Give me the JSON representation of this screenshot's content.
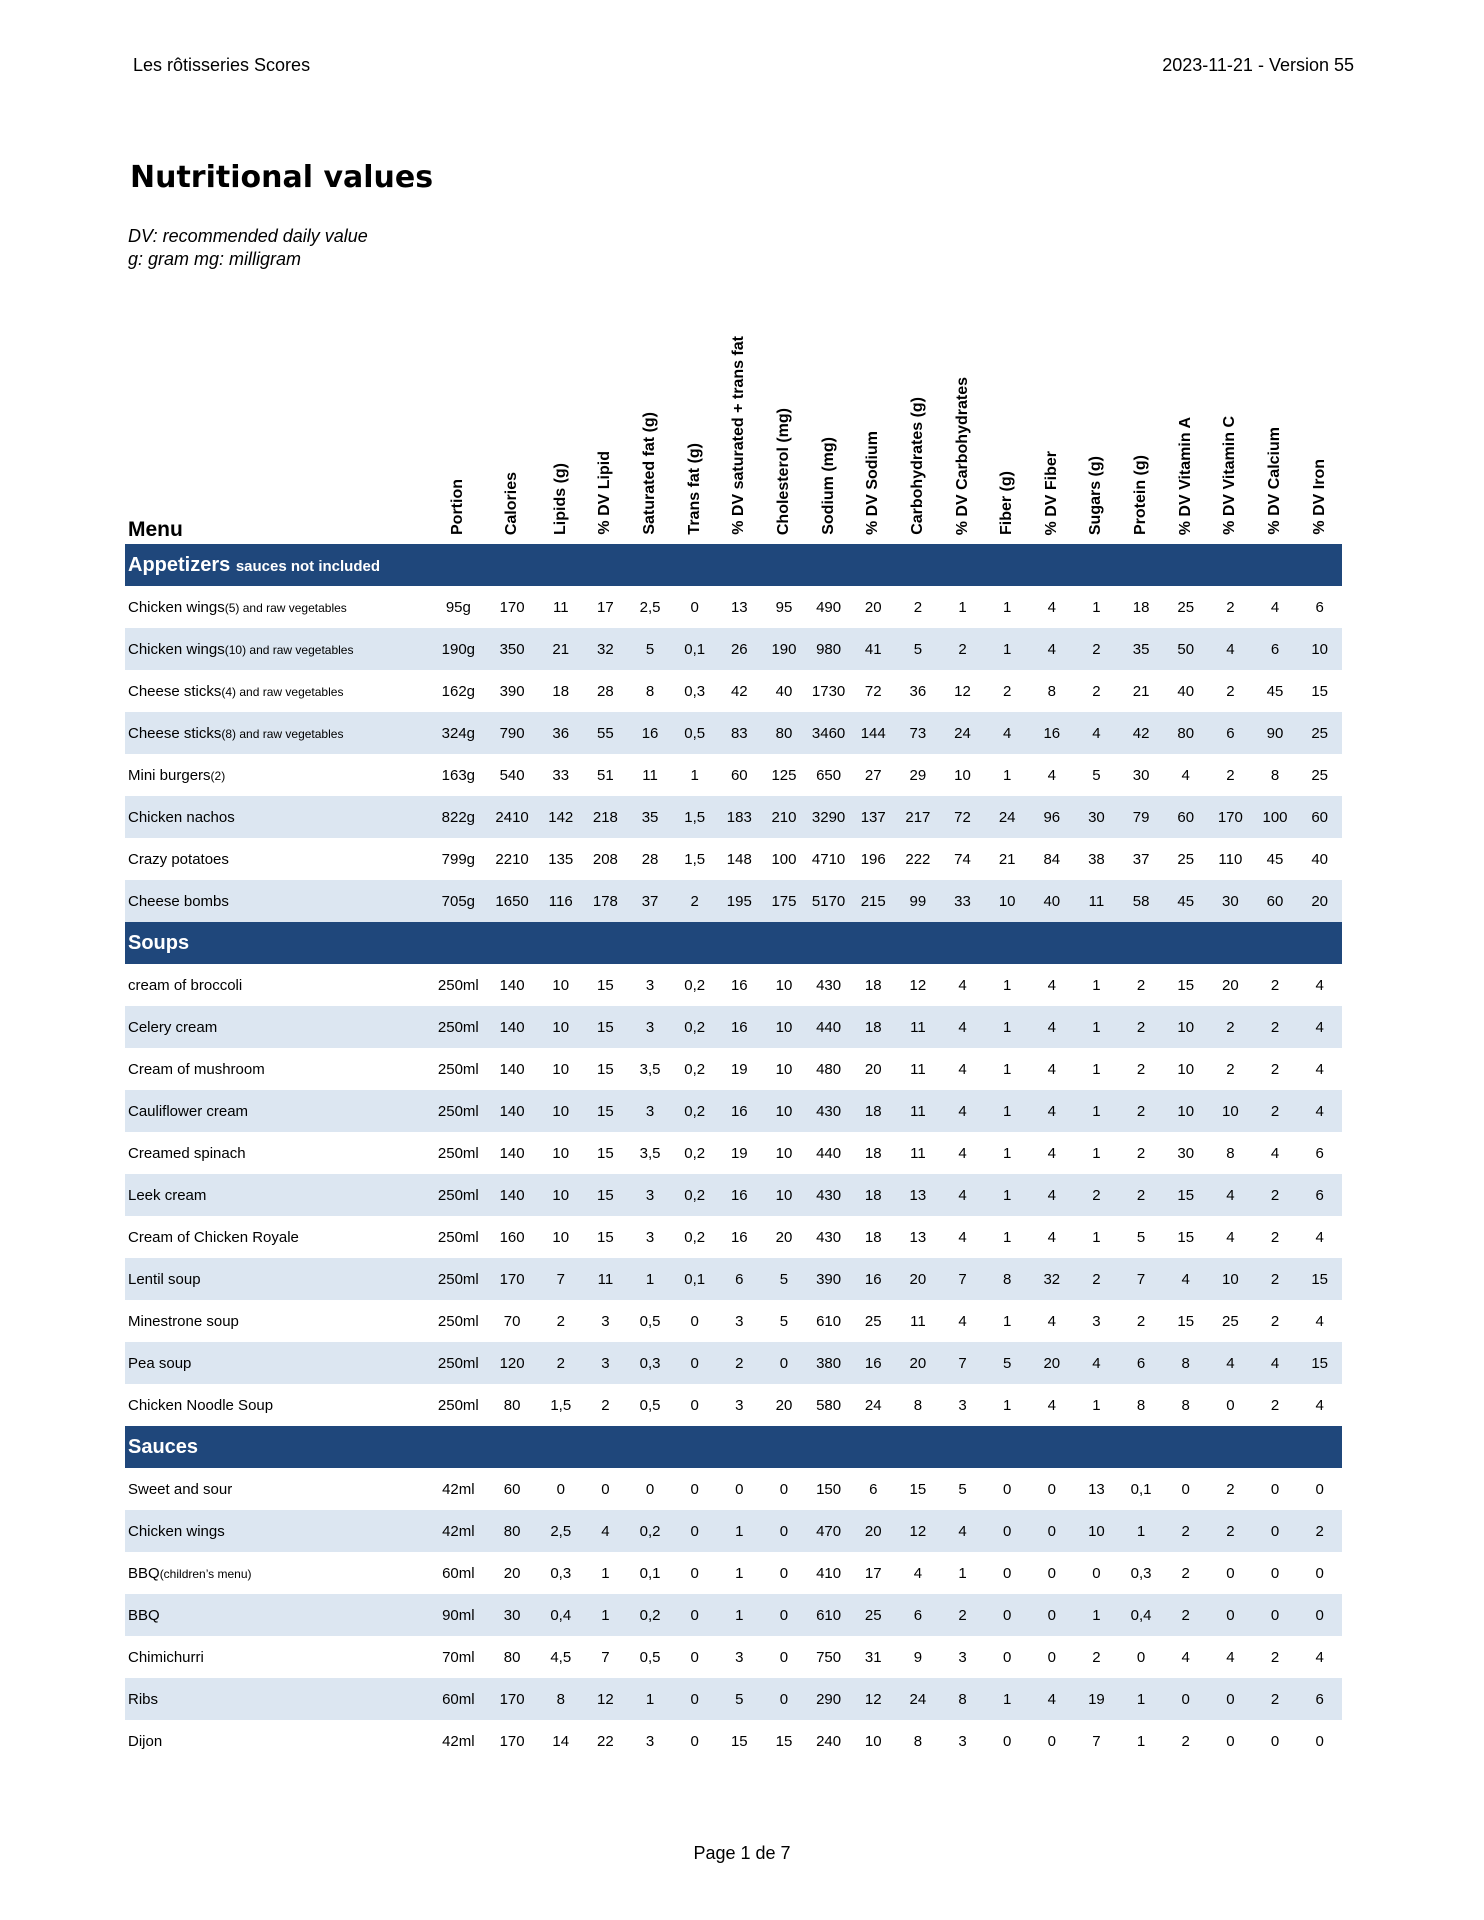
{
  "header": {
    "left": "Les rôtisseries Scores",
    "right": "2023-11-21 - Version 55"
  },
  "title": "Nutritional values",
  "notes": [
    "DV: recommended daily value",
    "g: gram mg: milligram"
  ],
  "table": {
    "menu_label": "Menu",
    "columns": [
      "Portion",
      "Calories",
      "Lipids (g)",
      "% DV Lipid",
      "Saturated fat (g)",
      "Trans fat (g)",
      "% DV saturated + trans fat",
      "Cholesterol (mg)",
      "Sodium (mg)",
      "% DV Sodium",
      "Carbohydrates (g)",
      "% DV Carbohydrates",
      "Fiber (g)",
      "% DV Fiber",
      "Sugars (g)",
      "Protein (g)",
      "% DV Vitamin A",
      "% DV Vitamin C",
      "% DV Calcium",
      "% DV Iron"
    ],
    "sections": [
      {
        "title": "Appetizers",
        "subtitle": "sauces not included",
        "rows": [
          {
            "name": "Chicken wings",
            "note": "(5) and raw vegetables",
            "values": [
              "95g",
              "170",
              "11",
              "17",
              "2,5",
              "0",
              "13",
              "95",
              "490",
              "20",
              "2",
              "1",
              "1",
              "4",
              "1",
              "18",
              "25",
              "2",
              "4",
              "6"
            ]
          },
          {
            "name": "Chicken wings",
            "note": "(10) and raw vegetables",
            "values": [
              "190g",
              "350",
              "21",
              "32",
              "5",
              "0,1",
              "26",
              "190",
              "980",
              "41",
              "5",
              "2",
              "1",
              "4",
              "2",
              "35",
              "50",
              "4",
              "6",
              "10"
            ]
          },
          {
            "name": "Cheese sticks",
            "note": "(4) and raw vegetables",
            "values": [
              "162g",
              "390",
              "18",
              "28",
              "8",
              "0,3",
              "42",
              "40",
              "1730",
              "72",
              "36",
              "12",
              "2",
              "8",
              "2",
              "21",
              "40",
              "2",
              "45",
              "15"
            ]
          },
          {
            "name": "Cheese sticks",
            "note": "(8) and raw vegetables",
            "values": [
              "324g",
              "790",
              "36",
              "55",
              "16",
              "0,5",
              "83",
              "80",
              "3460",
              "144",
              "73",
              "24",
              "4",
              "16",
              "4",
              "42",
              "80",
              "6",
              "90",
              "25"
            ]
          },
          {
            "name": "Mini burgers",
            "note": "(2)",
            "values": [
              "163g",
              "540",
              "33",
              "51",
              "11",
              "1",
              "60",
              "125",
              "650",
              "27",
              "29",
              "10",
              "1",
              "4",
              "5",
              "30",
              "4",
              "2",
              "8",
              "25"
            ]
          },
          {
            "name": "Chicken nachos",
            "values": [
              "822g",
              "2410",
              "142",
              "218",
              "35",
              "1,5",
              "183",
              "210",
              "3290",
              "137",
              "217",
              "72",
              "24",
              "96",
              "30",
              "79",
              "60",
              "170",
              "100",
              "60"
            ]
          },
          {
            "name": "Crazy potatoes",
            "values": [
              "799g",
              "2210",
              "135",
              "208",
              "28",
              "1,5",
              "148",
              "100",
              "4710",
              "196",
              "222",
              "74",
              "21",
              "84",
              "38",
              "37",
              "25",
              "110",
              "45",
              "40"
            ]
          },
          {
            "name": "Cheese bombs",
            "values": [
              "705g",
              "1650",
              "116",
              "178",
              "37",
              "2",
              "195",
              "175",
              "5170",
              "215",
              "99",
              "33",
              "10",
              "40",
              "11",
              "58",
              "45",
              "30",
              "60",
              "20"
            ]
          }
        ]
      },
      {
        "title": "Soups",
        "rows": [
          {
            "name": "cream of broccoli",
            "values": [
              "250ml",
              "140",
              "10",
              "15",
              "3",
              "0,2",
              "16",
              "10",
              "430",
              "18",
              "12",
              "4",
              "1",
              "4",
              "1",
              "2",
              "15",
              "20",
              "2",
              "4"
            ]
          },
          {
            "name": "Celery cream",
            "values": [
              "250ml",
              "140",
              "10",
              "15",
              "3",
              "0,2",
              "16",
              "10",
              "440",
              "18",
              "11",
              "4",
              "1",
              "4",
              "1",
              "2",
              "10",
              "2",
              "2",
              "4"
            ]
          },
          {
            "name": "Cream of mushroom",
            "values": [
              "250ml",
              "140",
              "10",
              "15",
              "3,5",
              "0,2",
              "19",
              "10",
              "480",
              "20",
              "11",
              "4",
              "1",
              "4",
              "1",
              "2",
              "10",
              "2",
              "2",
              "4"
            ]
          },
          {
            "name": "Cauliflower cream",
            "values": [
              "250ml",
              "140",
              "10",
              "15",
              "3",
              "0,2",
              "16",
              "10",
              "430",
              "18",
              "11",
              "4",
              "1",
              "4",
              "1",
              "2",
              "10",
              "10",
              "2",
              "4"
            ]
          },
          {
            "name": "Creamed spinach",
            "values": [
              "250ml",
              "140",
              "10",
              "15",
              "3,5",
              "0,2",
              "19",
              "10",
              "440",
              "18",
              "11",
              "4",
              "1",
              "4",
              "1",
              "2",
              "30",
              "8",
              "4",
              "6"
            ]
          },
          {
            "name": "Leek cream",
            "values": [
              "250ml",
              "140",
              "10",
              "15",
              "3",
              "0,2",
              "16",
              "10",
              "430",
              "18",
              "13",
              "4",
              "1",
              "4",
              "2",
              "2",
              "15",
              "4",
              "2",
              "6"
            ]
          },
          {
            "name": "Cream of Chicken Royale",
            "values": [
              "250ml",
              "160",
              "10",
              "15",
              "3",
              "0,2",
              "16",
              "20",
              "430",
              "18",
              "13",
              "4",
              "1",
              "4",
              "1",
              "5",
              "15",
              "4",
              "2",
              "4"
            ]
          },
          {
            "name": "Lentil soup",
            "values": [
              "250ml",
              "170",
              "7",
              "11",
              "1",
              "0,1",
              "6",
              "5",
              "390",
              "16",
              "20",
              "7",
              "8",
              "32",
              "2",
              "7",
              "4",
              "10",
              "2",
              "15"
            ]
          },
          {
            "name": "Minestrone soup",
            "values": [
              "250ml",
              "70",
              "2",
              "3",
              "0,5",
              "0",
              "3",
              "5",
              "610",
              "25",
              "11",
              "4",
              "1",
              "4",
              "3",
              "2",
              "15",
              "25",
              "2",
              "4"
            ]
          },
          {
            "name": "Pea soup",
            "values": [
              "250ml",
              "120",
              "2",
              "3",
              "0,3",
              "0",
              "2",
              "0",
              "380",
              "16",
              "20",
              "7",
              "5",
              "20",
              "4",
              "6",
              "8",
              "4",
              "4",
              "15"
            ]
          },
          {
            "name": "Chicken Noodle Soup",
            "values": [
              "250ml",
              "80",
              "1,5",
              "2",
              "0,5",
              "0",
              "3",
              "20",
              "580",
              "24",
              "8",
              "3",
              "1",
              "4",
              "1",
              "8",
              "8",
              "0",
              "2",
              "4"
            ]
          }
        ]
      },
      {
        "title": "Sauces",
        "rows": [
          {
            "name": "Sweet and sour",
            "values": [
              "42ml",
              "60",
              "0",
              "0",
              "0",
              "0",
              "0",
              "0",
              "150",
              "6",
              "15",
              "5",
              "0",
              "0",
              "13",
              "0,1",
              "0",
              "2",
              "0",
              "0"
            ]
          },
          {
            "name": "Chicken wings",
            "values": [
              "42ml",
              "80",
              "2,5",
              "4",
              "0,2",
              "0",
              "1",
              "0",
              "470",
              "20",
              "12",
              "4",
              "0",
              "0",
              "10",
              "1",
              "2",
              "2",
              "0",
              "2"
            ]
          },
          {
            "name": "BBQ",
            "note": "(children’s menu)",
            "values": [
              "60ml",
              "20",
              "0,3",
              "1",
              "0,1",
              "0",
              "1",
              "0",
              "410",
              "17",
              "4",
              "1",
              "0",
              "0",
              "0",
              "0,3",
              "2",
              "0",
              "0",
              "0"
            ]
          },
          {
            "name": "BBQ",
            "values": [
              "90ml",
              "30",
              "0,4",
              "1",
              "0,2",
              "0",
              "1",
              "0",
              "610",
              "25",
              "6",
              "2",
              "0",
              "0",
              "1",
              "0,4",
              "2",
              "0",
              "0",
              "0"
            ]
          },
          {
            "name": "Chimichurri",
            "values": [
              "70ml",
              "80",
              "4,5",
              "7",
              "0,5",
              "0",
              "3",
              "0",
              "750",
              "31",
              "9",
              "3",
              "0",
              "0",
              "2",
              "0",
              "4",
              "4",
              "2",
              "4"
            ]
          },
          {
            "name": "Ribs",
            "values": [
              "60ml",
              "170",
              "8",
              "12",
              "1",
              "0",
              "5",
              "0",
              "290",
              "12",
              "24",
              "8",
              "1",
              "4",
              "19",
              "1",
              "0",
              "0",
              "2",
              "6"
            ]
          },
          {
            "name": "Dijon",
            "values": [
              "42ml",
              "170",
              "14",
              "22",
              "3",
              "0",
              "15",
              "15",
              "240",
              "10",
              "8",
              "3",
              "0",
              "0",
              "7",
              "1",
              "2",
              "0",
              "0",
              "0"
            ]
          }
        ]
      }
    ]
  },
  "footer": "Page 1 de 7"
}
